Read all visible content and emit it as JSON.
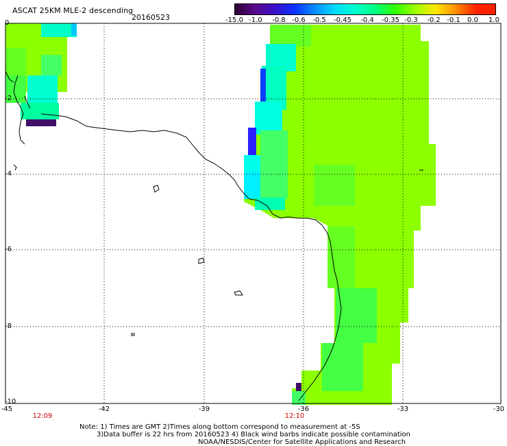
{
  "header": {
    "title": "ASCAT 25KM MLE-2 descending",
    "date": "20160523"
  },
  "colorbar": {
    "labels": [
      "-15.0",
      "-1.0",
      "-0.8",
      "-0.6",
      "-0.5",
      "-0.45",
      "-0.4",
      "-0.35",
      "-0.3",
      "-0.2",
      "-0.1",
      "0.0",
      "1.0"
    ],
    "colors": [
      "#2a0030",
      "#5a0a8c",
      "#3a10c8",
      "#0a32ff",
      "#0a8cff",
      "#00dcff",
      "#00ffd0",
      "#00ff80",
      "#32ff00",
      "#a0ff00",
      "#ffe600",
      "#ff8c00",
      "#ff2000"
    ]
  },
  "map": {
    "lat_labels": [
      "0",
      "-2",
      "-4",
      "-6",
      "-8",
      "-10"
    ],
    "lon_labels": [
      "-45",
      "-42",
      "-39",
      "-36",
      "-33",
      "-30"
    ],
    "lat_range": [
      -10,
      0
    ],
    "lon_range": [
      -45,
      -30
    ],
    "time_labels": [
      {
        "text": "12:09",
        "lon": -44
      },
      {
        "text": "12:10",
        "lon": -36.4
      }
    ],
    "grid": "dotted",
    "land": "white with black coastline",
    "swath_colors": {
      "main": "#8cff00",
      "green": "#44ff22",
      "cyan": "#00ffe0",
      "blue": "#2222ff",
      "purple": "#40106a"
    }
  },
  "notes": {
    "line1": "Note: 1) Times are GMT 2)Times along bottom correspond to measurement at -5S",
    "line2": "3)Data buffer is 22 hrs from 20160523 4) Black wind barbs indicate possible contamination",
    "line3": "NOAA/NESDIS/Center for Satellite Applications and Research"
  }
}
